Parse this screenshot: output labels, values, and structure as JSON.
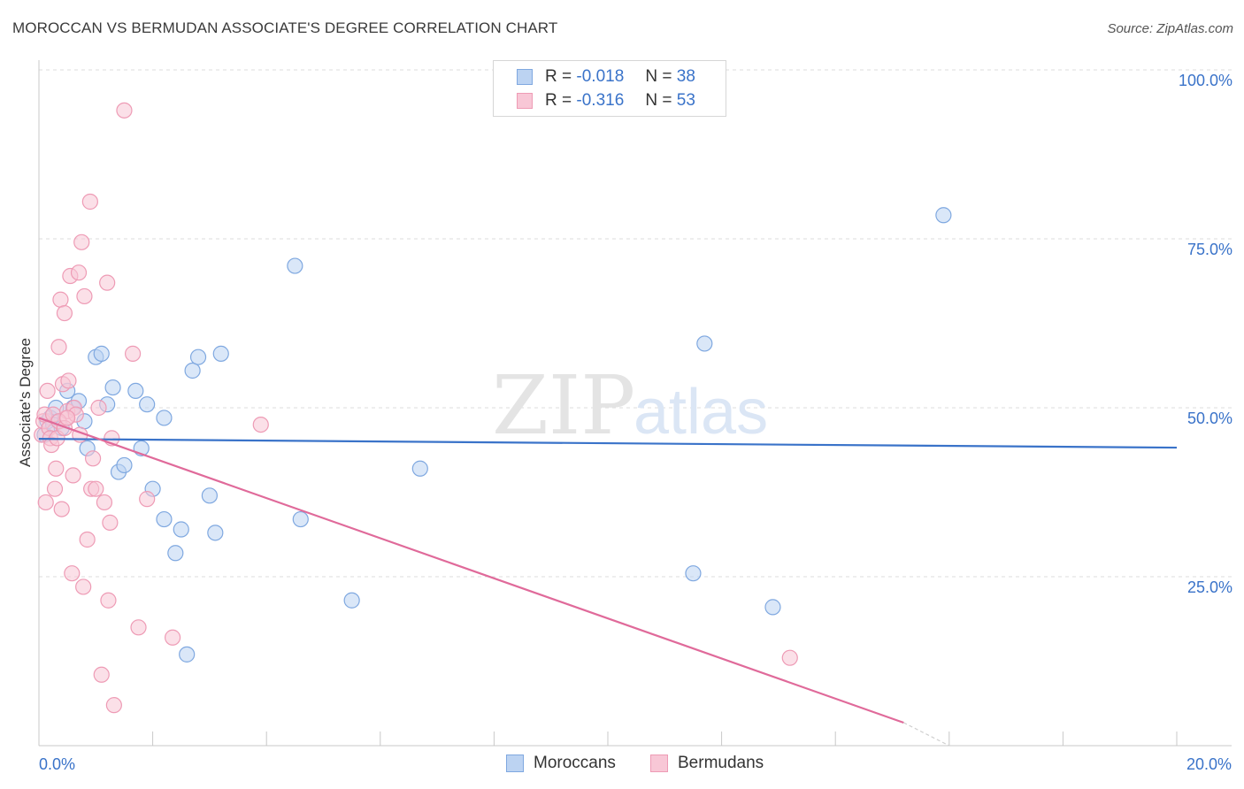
{
  "title": "MOROCCAN VS BERMUDAN ASSOCIATE'S DEGREE CORRELATION CHART",
  "source": "Source: ZipAtlas.com",
  "watermark": {
    "zip": "ZIP",
    "atlas": "atlas"
  },
  "legend": {
    "r_label": "R =",
    "n_label": "N =",
    "rows": [
      {
        "r": "-0.018",
        "n": "38",
        "fill": "#bcd3f2",
        "stroke": "#7fa8e0"
      },
      {
        "r": "-0.316",
        "n": "53",
        "fill": "#f8c7d6",
        "stroke": "#ee9bb5"
      }
    ]
  },
  "bottom_legend": [
    {
      "label": "Moroccans",
      "fill": "#bcd3f2",
      "stroke": "#7fa8e0"
    },
    {
      "label": "Bermudans",
      "fill": "#f8c7d6",
      "stroke": "#ee9bb5"
    }
  ],
  "chart_data": {
    "type": "scatter",
    "title": "MOROCCAN VS BERMUDAN ASSOCIATE'S DEGREE CORRELATION CHART",
    "xlabel": "",
    "ylabel": "Associate's Degree",
    "xlim": [
      0,
      20
    ],
    "ylim": [
      0,
      100
    ],
    "x_tick_labels": [
      {
        "value": 0,
        "label": "0.0%"
      },
      {
        "value": 20,
        "label": "20.0%"
      }
    ],
    "y_tick_labels": [
      {
        "value": 25,
        "label": "25.0%"
      },
      {
        "value": 50,
        "label": "50.0%"
      },
      {
        "value": 75,
        "label": "75.0%"
      },
      {
        "value": 100,
        "label": "100.0%"
      }
    ],
    "grid": true,
    "series": [
      {
        "name": "Moroccans",
        "color": "#3a73c9",
        "marker_fill": "#bcd3f2",
        "marker_stroke": "#7fa8e0",
        "points": [
          [
            0.1,
            46.0
          ],
          [
            0.15,
            48.0
          ],
          [
            0.2,
            48.5
          ],
          [
            0.25,
            47.5
          ],
          [
            0.3,
            50.0
          ],
          [
            0.4,
            47.0
          ],
          [
            0.5,
            52.5
          ],
          [
            0.6,
            50.0
          ],
          [
            0.7,
            51.0
          ],
          [
            0.8,
            48.0
          ],
          [
            0.85,
            44.0
          ],
          [
            1.0,
            57.5
          ],
          [
            1.1,
            58.0
          ],
          [
            1.2,
            50.5
          ],
          [
            1.3,
            53.0
          ],
          [
            1.4,
            40.5
          ],
          [
            1.5,
            41.5
          ],
          [
            1.7,
            52.5
          ],
          [
            1.8,
            44.0
          ],
          [
            1.9,
            50.5
          ],
          [
            2.0,
            38.0
          ],
          [
            2.2,
            48.5
          ],
          [
            2.2,
            33.5
          ],
          [
            2.4,
            28.5
          ],
          [
            2.5,
            32.0
          ],
          [
            2.6,
            13.5
          ],
          [
            2.7,
            55.5
          ],
          [
            2.8,
            57.5
          ],
          [
            3.0,
            37.0
          ],
          [
            3.1,
            31.5
          ],
          [
            3.2,
            58.0
          ],
          [
            4.5,
            71.0
          ],
          [
            4.6,
            33.5
          ],
          [
            5.5,
            21.5
          ],
          [
            6.7,
            41.0
          ],
          [
            11.5,
            25.5
          ],
          [
            11.7,
            59.5
          ],
          [
            12.9,
            20.5
          ],
          [
            15.9,
            78.5
          ]
        ],
        "trend": {
          "x0": 0,
          "y0": 45.4,
          "x1": 20,
          "y1": 44.1
        }
      },
      {
        "name": "Bermudans",
        "color": "#e06a9a",
        "marker_fill": "#f8c7d6",
        "marker_stroke": "#ee9bb5",
        "points": [
          [
            0.05,
            46.0
          ],
          [
            0.08,
            48.0
          ],
          [
            0.1,
            49.0
          ],
          [
            0.12,
            36.0
          ],
          [
            0.15,
            52.5
          ],
          [
            0.18,
            47.0
          ],
          [
            0.2,
            45.5
          ],
          [
            0.22,
            44.5
          ],
          [
            0.25,
            49.0
          ],
          [
            0.28,
            38.0
          ],
          [
            0.3,
            41.0
          ],
          [
            0.32,
            45.5
          ],
          [
            0.35,
            59.0
          ],
          [
            0.38,
            66.0
          ],
          [
            0.4,
            35.0
          ],
          [
            0.42,
            53.5
          ],
          [
            0.45,
            64.0
          ],
          [
            0.48,
            48.5
          ],
          [
            0.5,
            49.5
          ],
          [
            0.52,
            54.0
          ],
          [
            0.55,
            69.5
          ],
          [
            0.58,
            25.5
          ],
          [
            0.6,
            40.0
          ],
          [
            0.62,
            50.0
          ],
          [
            0.65,
            49.0
          ],
          [
            0.7,
            70.0
          ],
          [
            0.72,
            46.0
          ],
          [
            0.75,
            74.5
          ],
          [
            0.78,
            23.5
          ],
          [
            0.8,
            66.5
          ],
          [
            0.85,
            30.5
          ],
          [
            0.9,
            80.5
          ],
          [
            0.92,
            38.0
          ],
          [
            0.95,
            42.5
          ],
          [
            1.0,
            38.0
          ],
          [
            1.05,
            50.0
          ],
          [
            1.1,
            10.5
          ],
          [
            1.15,
            36.0
          ],
          [
            1.2,
            68.5
          ],
          [
            1.22,
            21.5
          ],
          [
            1.28,
            45.5
          ],
          [
            1.32,
            6.0
          ],
          [
            1.5,
            94.0
          ],
          [
            1.65,
            58.0
          ],
          [
            1.75,
            17.5
          ],
          [
            1.9,
            36.5
          ],
          [
            2.35,
            16.0
          ],
          [
            3.9,
            47.5
          ],
          [
            13.2,
            13.0
          ],
          [
            1.25,
            33.0
          ],
          [
            0.35,
            48.0
          ],
          [
            0.45,
            47.0
          ],
          [
            0.5,
            48.5
          ]
        ],
        "trend": {
          "x0": 0,
          "y0": 48.5,
          "x1": 15.2,
          "y1": 3.4
        },
        "trend_dashed_extension": {
          "x0": 15.2,
          "y0": 3.4,
          "x1": 16.0,
          "y1": 0.0
        }
      }
    ]
  }
}
